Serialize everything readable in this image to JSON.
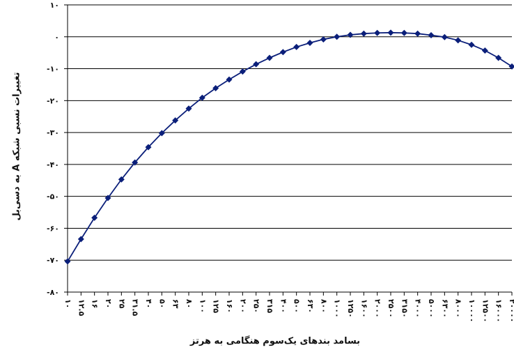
{
  "chart_data": {
    "type": "line",
    "xlabel": "بسامد بندهای یک‌سوم هنگامی به هرتز",
    "ylabel": "تغییرات نسبی شبکه A به دسی‌بل",
    "ylim": [
      -80,
      10
    ],
    "yticks": [
      10,
      0,
      -10,
      -20,
      -30,
      -40,
      -50,
      -60,
      -70,
      -80
    ],
    "ytick_labels": [
      "۱۰",
      "۰",
      "-۱۰",
      "-۲۰",
      "-۳۰",
      "-۴۰",
      "-۵۰",
      "-۶۰",
      "-۷۰",
      "-۸۰"
    ],
    "grid": true,
    "categories": [
      "۱۰",
      "۱۲.۵",
      "۱۶",
      "۲۰",
      "۲۵",
      "۳۱.۵",
      "۴۰",
      "۵۰",
      "۶۳",
      "۸۰",
      "۱۰۰",
      "۱۲۵",
      "۱۶۰",
      "۲۰۰",
      "۲۵۰",
      "۳۱۵",
      "۴۰۰",
      "۵۰۰",
      "۶۳۰",
      "۸۰۰",
      "۱۰۰۰",
      "۱۲۵۰",
      "۱۶۰۰",
      "۲۰۰۰",
      "۲۵۰۰",
      "۳۱۵۰",
      "۴۰۰۰",
      "۵۰۰۰",
      "۶۳۰۰",
      "۸۰۰۰",
      "۱۰۰۰۰",
      "۱۲۵۰۰",
      "۱۶۰۰۰",
      "۲۰۰۰۰"
    ],
    "series": [
      {
        "color": "#0b1f7a",
        "values": [
          -70.4,
          -63.4,
          -56.7,
          -50.5,
          -44.7,
          -39.4,
          -34.6,
          -30.2,
          -26.2,
          -22.5,
          -19.1,
          -16.1,
          -13.4,
          -10.9,
          -8.6,
          -6.6,
          -4.8,
          -3.2,
          -1.9,
          -0.8,
          0.0,
          0.6,
          1.0,
          1.2,
          1.3,
          1.2,
          1.0,
          0.5,
          -0.1,
          -1.1,
          -2.5,
          -4.3,
          -6.6,
          -9.3
        ]
      }
    ]
  }
}
